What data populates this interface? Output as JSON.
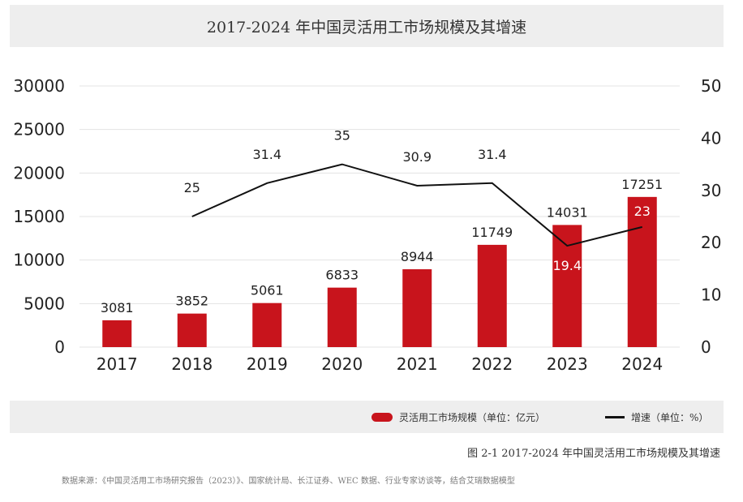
{
  "title": "2017-2024 年中国灵活用工市场规模及其增速",
  "caption": "图 2-1 2017-2024 年中国灵活用工市场规模及其增速",
  "source": "数据来源：《中国灵活用工市场研究报告（2023）》、国家统计局、长江证券、WEC 数据、行业专家访谈等，结合艾瑞数据模型",
  "colors": {
    "bar": "#c8141c",
    "line": "#111111",
    "grid": "#e3e3e3",
    "band": "#eeeeee"
  },
  "chart_data": {
    "type": "bar",
    "categories": [
      "2017",
      "2018",
      "2019",
      "2020",
      "2021",
      "2022",
      "2023",
      "2024"
    ],
    "series": [
      {
        "name": "灵活用工市场规模（单位：亿元）",
        "type": "bar",
        "axis": "left",
        "values": [
          3081,
          3852,
          5061,
          6833,
          8944,
          11749,
          14031,
          17251
        ]
      },
      {
        "name": "增速（单位：%）",
        "type": "line",
        "axis": "right",
        "values": [
          null,
          25,
          31.4,
          35,
          30.9,
          31.4,
          19.4,
          23
        ]
      }
    ],
    "y_left": {
      "ylim": [
        0,
        30000
      ],
      "ticks": [
        "0",
        "5000",
        "10000",
        "15000",
        "20000",
        "25000",
        "30000"
      ]
    },
    "y_right": {
      "ylim": [
        0,
        50
      ],
      "ticks": [
        "0",
        "10",
        "20",
        "30",
        "40",
        "50"
      ]
    },
    "grid": true,
    "legend_position": "bottom"
  }
}
